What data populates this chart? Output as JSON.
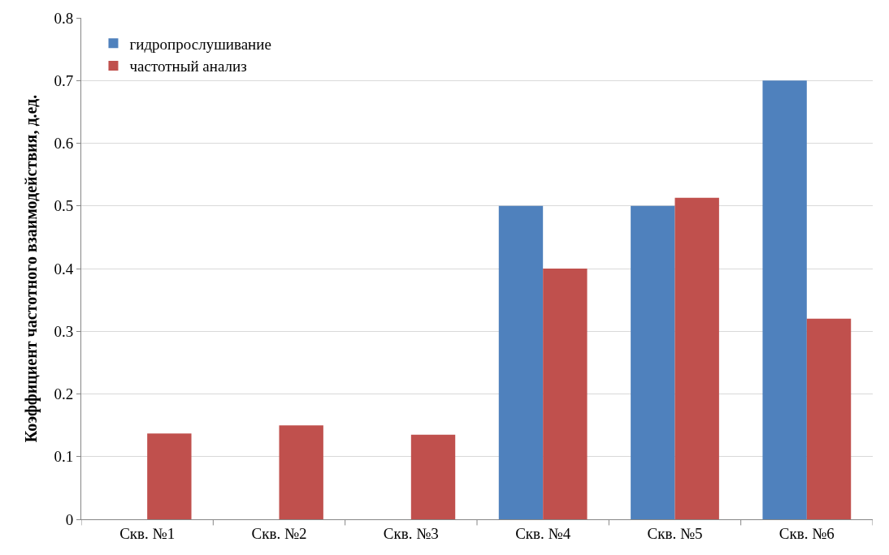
{
  "chart_data": {
    "type": "bar",
    "ylabel": "Коэффициент частотного взаимодействия, д.ед.",
    "categories": [
      "Скв. №1",
      "Скв. №2",
      "Скв. №3",
      "Скв. №4",
      "Скв. №5",
      "Скв. №6"
    ],
    "series": [
      {
        "name": "гидропрослушивание",
        "color": "#4f81bd",
        "values": [
          null,
          null,
          null,
          0.5,
          0.5,
          0.7
        ]
      },
      {
        "name": "частотный анализ",
        "color": "#c0504d",
        "values": [
          0.137,
          0.15,
          0.135,
          0.4,
          0.513,
          0.32
        ]
      }
    ],
    "ylim": [
      0,
      0.8
    ],
    "yticks": [
      0,
      0.1,
      0.2,
      0.3,
      0.4,
      0.5,
      0.6,
      0.7,
      0.8
    ],
    "grid": "y",
    "legend": "top left"
  }
}
